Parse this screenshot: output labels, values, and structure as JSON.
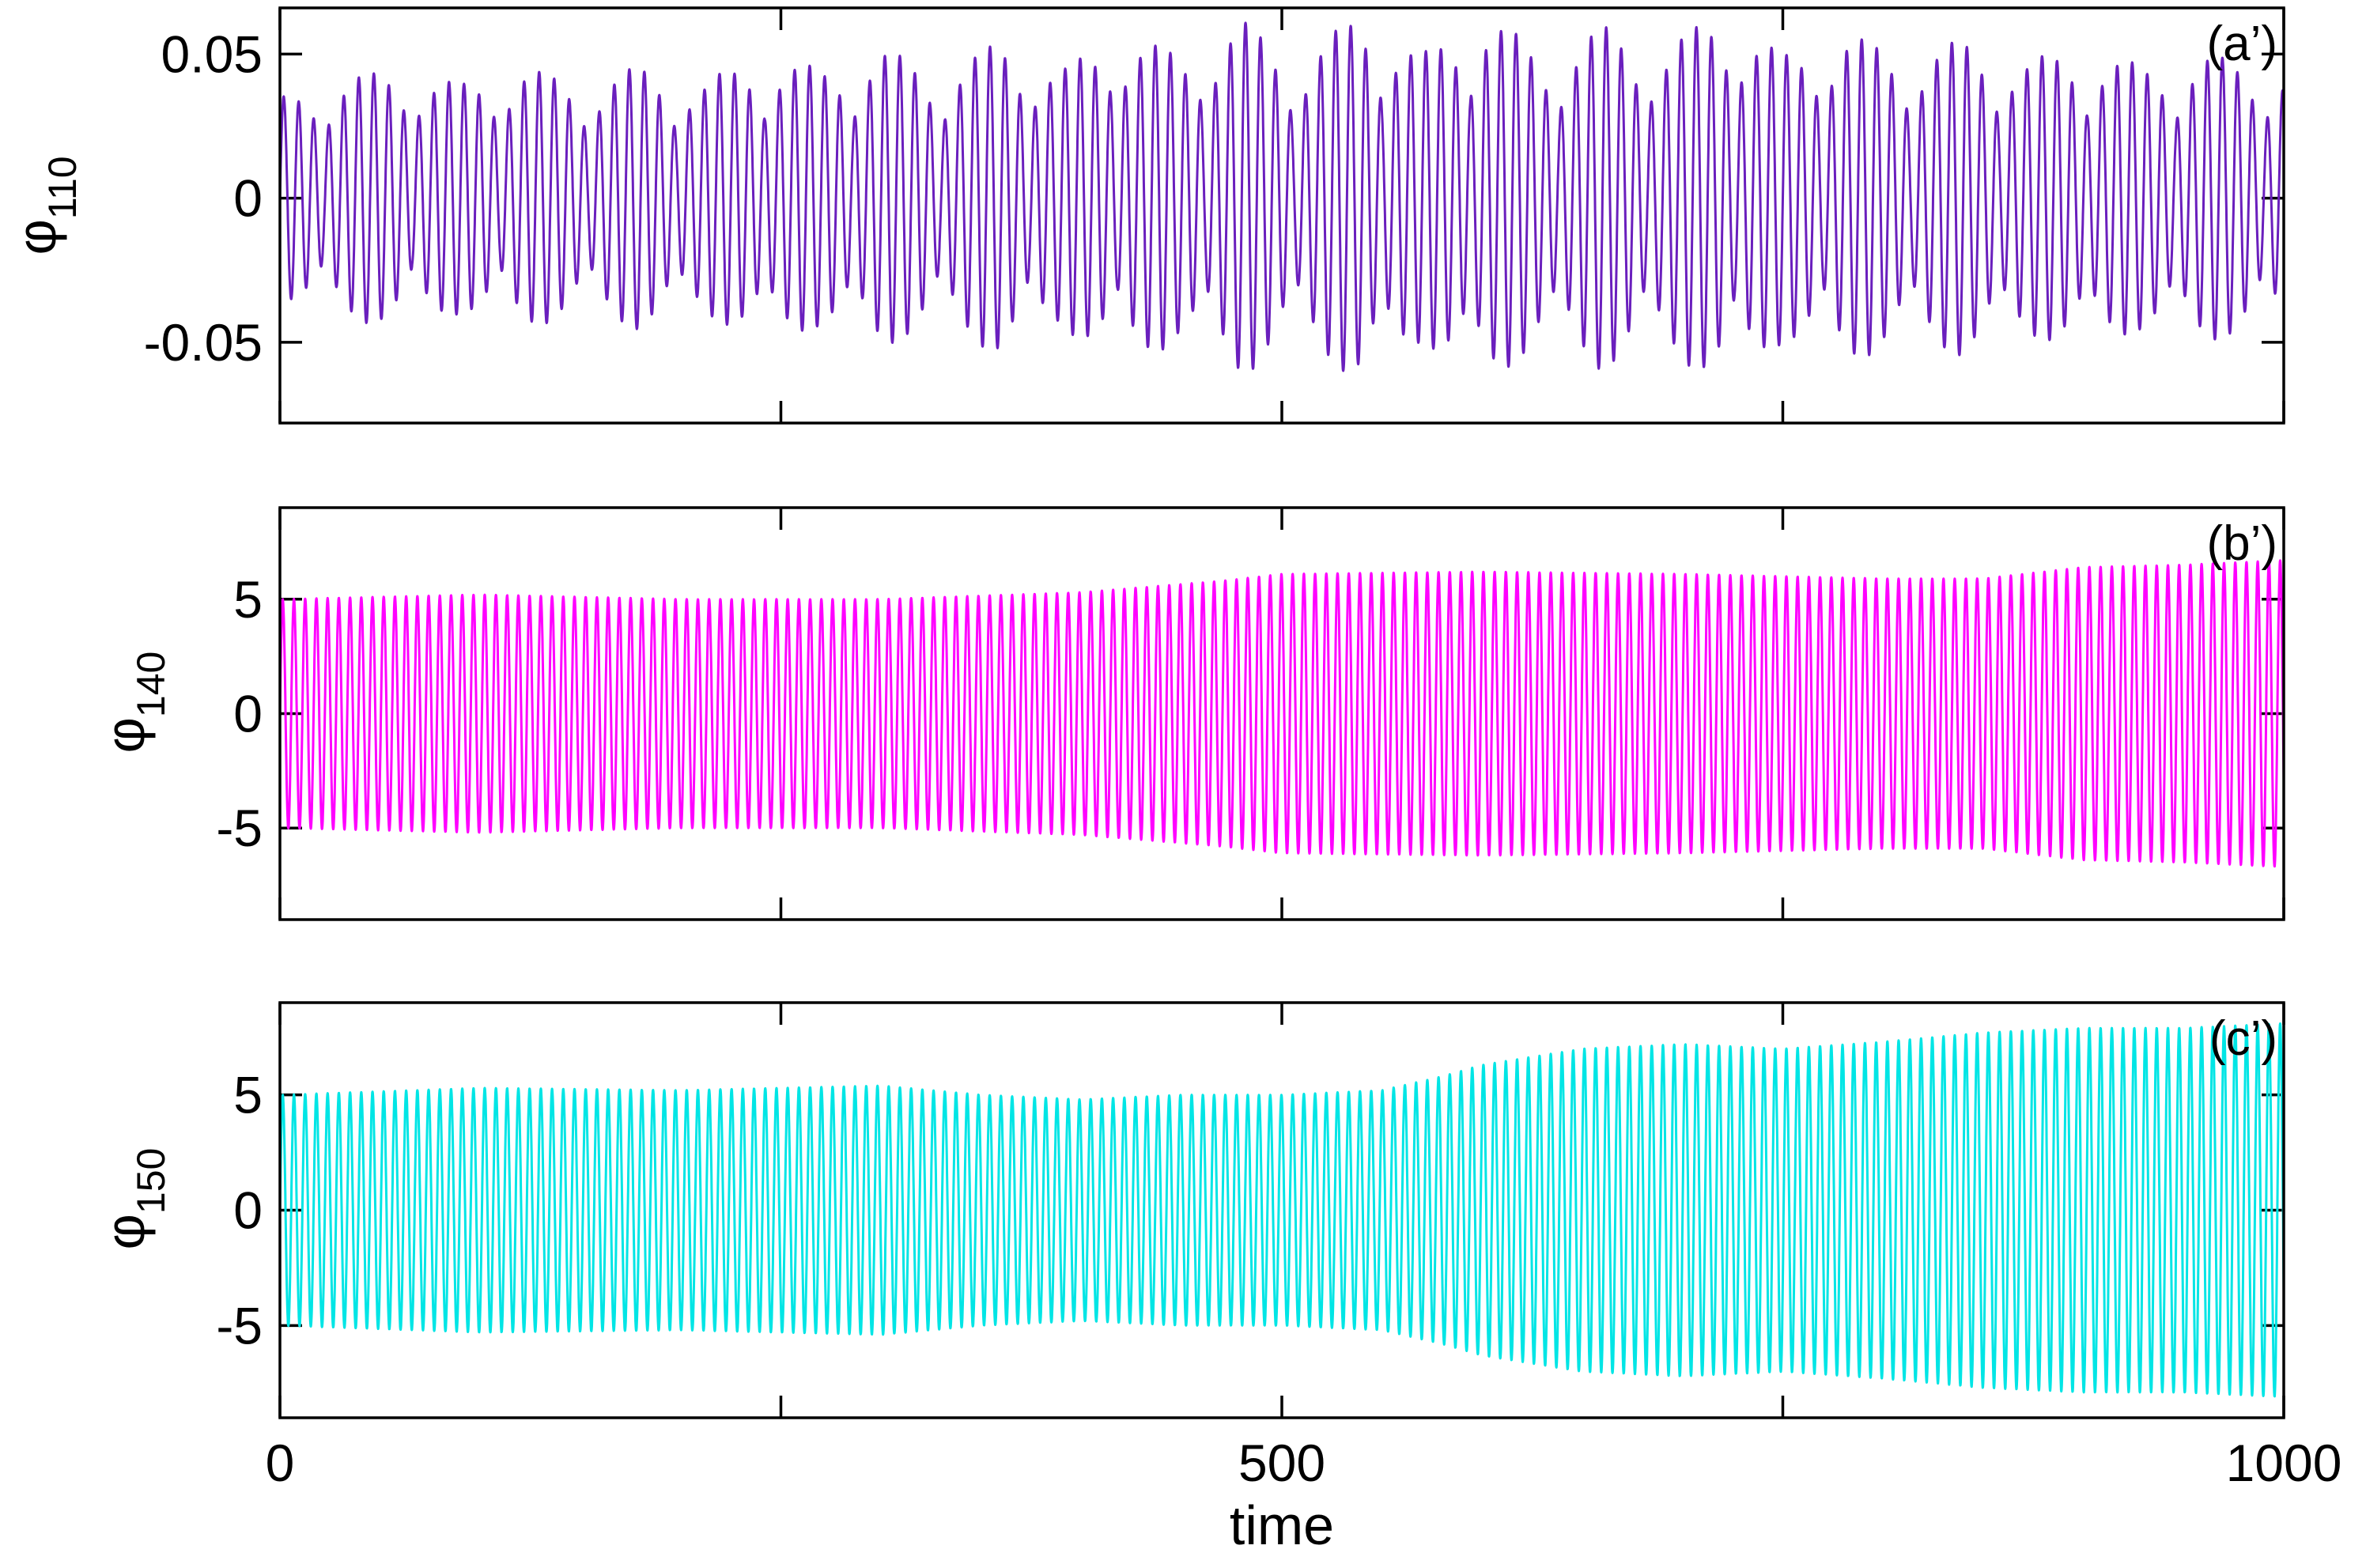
{
  "chart_data": [
    {
      "type": "line",
      "panel_label": "(a’)",
      "ylabel": "φ",
      "ylabel_sub": "110",
      "xlim": [
        0,
        1000
      ],
      "ylim": [
        -0.078,
        0.066
      ],
      "y_ticks": [
        {
          "value": 0.05,
          "label": "0.05"
        },
        {
          "value": 0,
          "label": "0"
        },
        {
          "value": -0.05,
          "label": "-0.05"
        }
      ],
      "x_ticks": [
        0,
        250,
        500,
        750,
        1000
      ],
      "color": "#6a1fbd",
      "series": [
        {
          "period": 7.5,
          "envelope": {
            "x": [
              0,
              30,
              60,
              90,
              120,
              150,
              180,
              210,
              240,
              270,
              300,
              330,
              360,
              390,
              420,
              450,
              480,
              510,
              540,
              570,
              600,
              630,
              660,
              690,
              720,
              750,
              780,
              810,
              840,
              870,
              900,
              930,
              960,
              1000
            ],
            "amplitude": [
              0.035,
              0.042,
              0.045,
              0.04,
              0.046,
              0.04,
              0.046,
              0.04,
              0.05,
              0.045,
              0.052,
              0.044,
              0.055,
              0.045,
              0.058,
              0.05,
              0.062,
              0.048,
              0.066,
              0.05,
              0.066,
              0.05,
              0.06,
              0.052,
              0.066,
              0.05,
              0.058,
              0.05,
              0.055,
              0.048,
              0.052,
              0.046,
              0.05,
              0.045
            ]
          },
          "beat_period": 44
        }
      ]
    },
    {
      "type": "line",
      "panel_label": "(b’)",
      "ylabel": "φ",
      "ylabel_sub": "140",
      "xlim": [
        0,
        1000
      ],
      "ylim": [
        -9,
        9
      ],
      "y_ticks": [
        {
          "value": 5,
          "label": "5"
        },
        {
          "value": 0,
          "label": "0"
        },
        {
          "value": -5,
          "label": "-5"
        }
      ],
      "x_ticks": [
        0,
        250,
        500,
        750,
        1000
      ],
      "color": "#ff00ff",
      "series": [
        {
          "period": 5.6,
          "envelope": {
            "x": [
              0,
              100,
              200,
              300,
              400,
              470,
              500,
              600,
              700,
              800,
              850,
              900,
              950,
              1000
            ],
            "amplitude": [
              5.0,
              5.2,
              5.0,
              5.0,
              5.3,
              5.8,
              6.1,
              6.2,
              6.1,
              5.9,
              5.9,
              6.4,
              6.5,
              6.7
            ]
          }
        }
      ]
    },
    {
      "type": "line",
      "panel_label": "(c’)",
      "ylabel": "φ",
      "ylabel_sub": "150",
      "xlim": [
        0,
        1000
      ],
      "ylim": [
        -9,
        9
      ],
      "y_ticks": [
        {
          "value": 5,
          "label": "5"
        },
        {
          "value": 0,
          "label": "0"
        },
        {
          "value": -5,
          "label": "-5"
        }
      ],
      "x_ticks": [
        0,
        250,
        500,
        750,
        1000
      ],
      "x_tick_labels": [
        {
          "value": 0,
          "label": "0"
        },
        {
          "value": 500,
          "label": "500"
        },
        {
          "value": 1000,
          "label": "1000"
        }
      ],
      "xlabel": "time",
      "color": "#00e5e5",
      "series": [
        {
          "period": 5.6,
          "envelope": {
            "x": [
              0,
              100,
              200,
              300,
              350,
              400,
              450,
              500,
              550,
              580,
              600,
              650,
              700,
              750,
              800,
              850,
              900,
              950,
              1000
            ],
            "amplitude": [
              5.0,
              5.3,
              5.2,
              5.4,
              5.0,
              4.8,
              5.0,
              5.0,
              5.2,
              5.8,
              6.3,
              7.0,
              7.2,
              7.0,
              7.3,
              7.7,
              7.9,
              7.9,
              8.1
            ]
          }
        }
      ]
    }
  ]
}
